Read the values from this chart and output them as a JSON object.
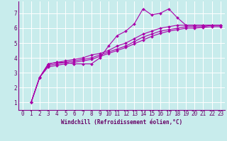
{
  "xlabel": "Windchill (Refroidissement éolien,°C)",
  "bg_color": "#c8ecec",
  "line_color": "#aa00aa",
  "grid_color": "#ffffff",
  "xlim": [
    -0.5,
    23.5
  ],
  "ylim": [
    0.5,
    7.8
  ],
  "yticks": [
    1,
    2,
    3,
    4,
    5,
    6,
    7
  ],
  "xticks": [
    0,
    1,
    2,
    3,
    4,
    5,
    6,
    7,
    8,
    9,
    10,
    11,
    12,
    13,
    14,
    15,
    16,
    17,
    18,
    19,
    20,
    21,
    22,
    23
  ],
  "series": [
    {
      "x": [
        1,
        2,
        3,
        4,
        5,
        6,
        7,
        8,
        9,
        10,
        11,
        12,
        13,
        14,
        15,
        16,
        17,
        18,
        19,
        20,
        21,
        22,
        23
      ],
      "y": [
        1.0,
        2.7,
        3.6,
        3.7,
        3.7,
        3.6,
        3.6,
        3.6,
        4.0,
        4.8,
        5.5,
        5.8,
        6.3,
        7.3,
        6.9,
        7.0,
        7.3,
        6.7,
        6.2,
        6.2,
        6.2,
        6.2,
        6.2
      ]
    },
    {
      "x": [
        1,
        2,
        3,
        4,
        5,
        6,
        7,
        8,
        9,
        10,
        11,
        12,
        13,
        14,
        15,
        16,
        17,
        18,
        19,
        20,
        21,
        22,
        23
      ],
      "y": [
        1.0,
        2.7,
        3.6,
        3.7,
        3.8,
        3.9,
        4.0,
        4.2,
        4.3,
        4.5,
        4.8,
        5.0,
        5.3,
        5.6,
        5.8,
        6.0,
        6.1,
        6.2,
        6.2,
        6.2,
        6.2,
        6.2,
        6.2
      ]
    },
    {
      "x": [
        1,
        2,
        3,
        4,
        5,
        6,
        7,
        8,
        9,
        10,
        11,
        12,
        13,
        14,
        15,
        16,
        17,
        18,
        19,
        20,
        21,
        22,
        23
      ],
      "y": [
        1.0,
        2.7,
        3.5,
        3.6,
        3.7,
        3.8,
        3.9,
        4.0,
        4.2,
        4.4,
        4.6,
        4.8,
        5.1,
        5.4,
        5.6,
        5.8,
        5.9,
        6.0,
        6.1,
        6.1,
        6.1,
        6.2,
        6.2
      ]
    },
    {
      "x": [
        1,
        2,
        3,
        4,
        5,
        6,
        7,
        8,
        9,
        10,
        11,
        12,
        13,
        14,
        15,
        16,
        17,
        18,
        19,
        20,
        21,
        22,
        23
      ],
      "y": [
        1.0,
        2.7,
        3.4,
        3.5,
        3.6,
        3.7,
        3.8,
        3.9,
        4.1,
        4.3,
        4.5,
        4.7,
        4.95,
        5.2,
        5.45,
        5.65,
        5.8,
        5.9,
        6.0,
        6.0,
        6.05,
        6.1,
        6.1
      ]
    }
  ],
  "marker": "D",
  "markersize": 2.0,
  "linewidth": 0.8,
  "tick_fontsize": 5.5,
  "xlabel_fontsize": 5.5,
  "axis_label_color": "#660066",
  "spine_color": "#880088"
}
